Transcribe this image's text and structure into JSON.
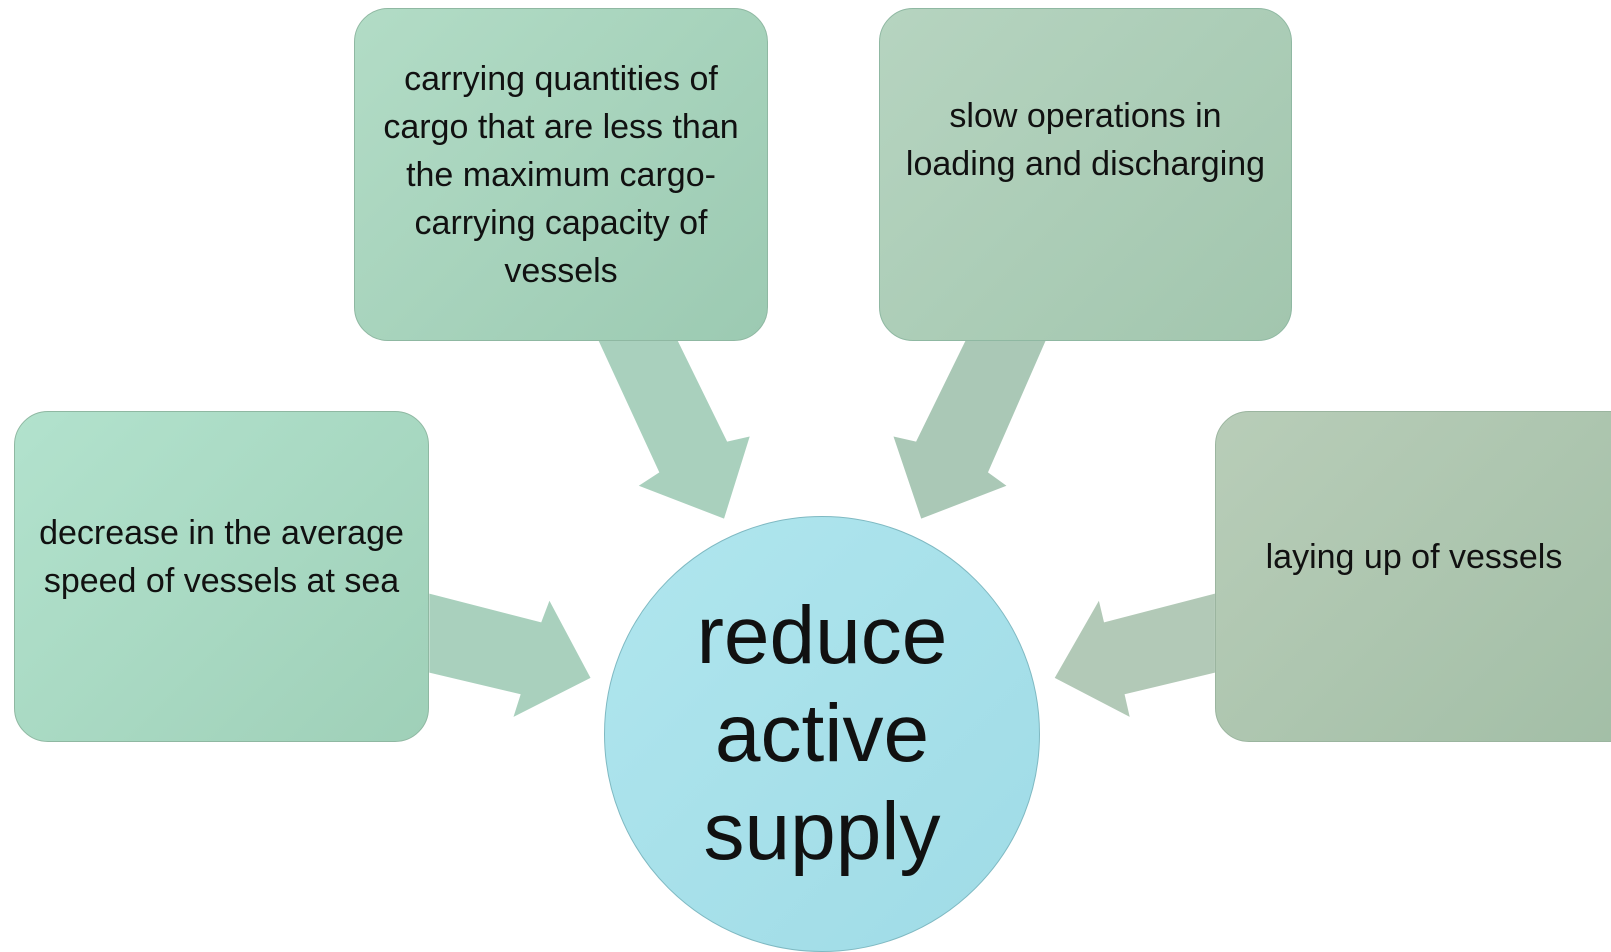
{
  "nodes": [
    {
      "label": "carrying quantities of cargo that are less than the maximum cargo-carrying capacity of vessels"
    },
    {
      "label": "slow operations in loading and discharging"
    },
    {
      "label": "decrease in the average speed of vessels at sea"
    },
    {
      "label": "laying up of vessels"
    }
  ],
  "center": {
    "label": "reduce active supply"
  }
}
